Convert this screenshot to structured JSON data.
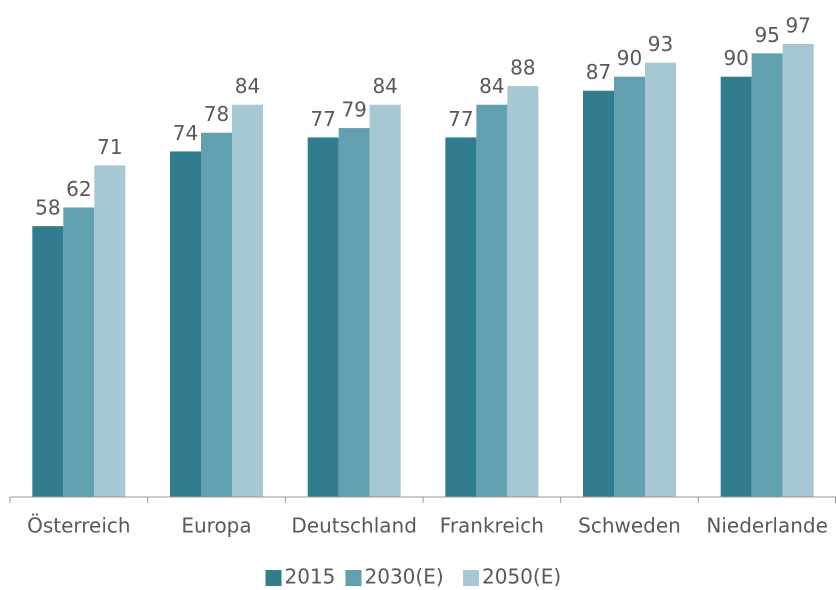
{
  "chart_data": {
    "type": "bar",
    "categories": [
      "Österreich",
      "Europa",
      "Deutschland",
      "Frankreich",
      "Schweden",
      "Niederlande"
    ],
    "series": [
      {
        "name": "2015",
        "color": "#317d8f",
        "values": [
          58,
          74,
          77,
          77,
          87,
          90
        ]
      },
      {
        "name": "2030(E)",
        "color": "#62a0b0",
        "values": [
          62,
          78,
          79,
          84,
          90,
          95
        ]
      },
      {
        "name": "2050(E)",
        "color": "#a5c8d2",
        "values": [
          71,
          84,
          84,
          88,
          93,
          97
        ]
      }
    ],
    "ylim": [
      0,
      100
    ],
    "legend": "bottom"
  }
}
